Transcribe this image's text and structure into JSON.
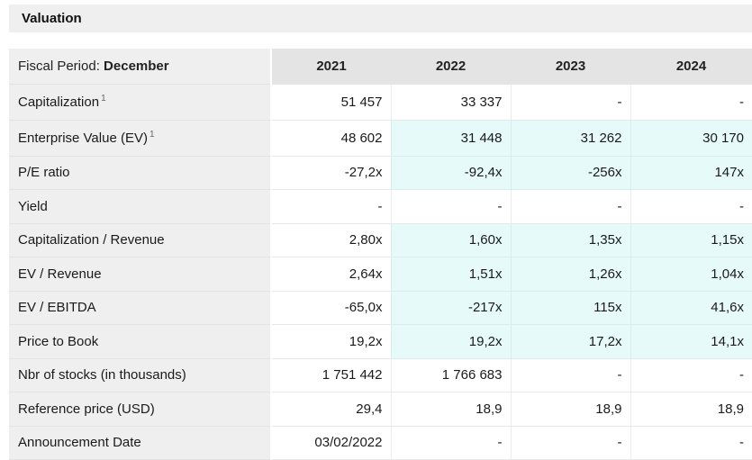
{
  "section_title": "Valuation",
  "table": {
    "header_label_prefix": "Fiscal Period: ",
    "header_label_bold": "December",
    "years": [
      "2021",
      "2022",
      "2023",
      "2024"
    ],
    "rows": [
      {
        "label": "Capitalization",
        "note": "1",
        "values": [
          "51 457",
          "33 337",
          "-",
          "-"
        ],
        "estimated": [
          false,
          false,
          false,
          false
        ]
      },
      {
        "label": "Enterprise Value (EV)",
        "note": "1",
        "values": [
          "48 602",
          "31 448",
          "31 262",
          "30 170"
        ],
        "estimated": [
          false,
          true,
          true,
          true
        ]
      },
      {
        "label": "P/E ratio",
        "note": "",
        "values": [
          "-27,2x",
          "-92,4x",
          "-256x",
          "147x"
        ],
        "estimated": [
          false,
          true,
          true,
          true
        ]
      },
      {
        "label": "Yield",
        "note": "",
        "values": [
          "-",
          "-",
          "-",
          "-"
        ],
        "estimated": [
          false,
          false,
          false,
          false
        ]
      },
      {
        "label": "Capitalization / Revenue",
        "note": "",
        "values": [
          "2,80x",
          "1,60x",
          "1,35x",
          "1,15x"
        ],
        "estimated": [
          false,
          true,
          true,
          true
        ]
      },
      {
        "label": "EV / Revenue",
        "note": "",
        "values": [
          "2,64x",
          "1,51x",
          "1,26x",
          "1,04x"
        ],
        "estimated": [
          false,
          true,
          true,
          true
        ]
      },
      {
        "label": "EV / EBITDA",
        "note": "",
        "values": [
          "-65,0x",
          "-217x",
          "115x",
          "41,6x"
        ],
        "estimated": [
          false,
          true,
          true,
          true
        ]
      },
      {
        "label": "Price to Book",
        "note": "",
        "values": [
          "19,2x",
          "19,2x",
          "17,2x",
          "14,1x"
        ],
        "estimated": [
          false,
          true,
          true,
          true
        ]
      },
      {
        "label": "Nbr of stocks (in thousands)",
        "note": "",
        "values": [
          "1 751 442",
          "1 766 683",
          "-",
          "-"
        ],
        "estimated": [
          false,
          false,
          false,
          false
        ]
      },
      {
        "label": "Reference price (USD)",
        "note": "",
        "values": [
          "29,4",
          "18,9",
          "18,9",
          "18,9"
        ],
        "estimated": [
          false,
          false,
          false,
          false
        ]
      },
      {
        "label": "Announcement Date",
        "note": "",
        "values": [
          "03/02/2022",
          "-",
          "-",
          "-"
        ],
        "estimated": [
          false,
          false,
          false,
          false
        ]
      }
    ]
  },
  "colors": {
    "label_bg": "#efefef",
    "header_bg": "#e4e4e4",
    "estimate_bg": "#e6fafa"
  }
}
